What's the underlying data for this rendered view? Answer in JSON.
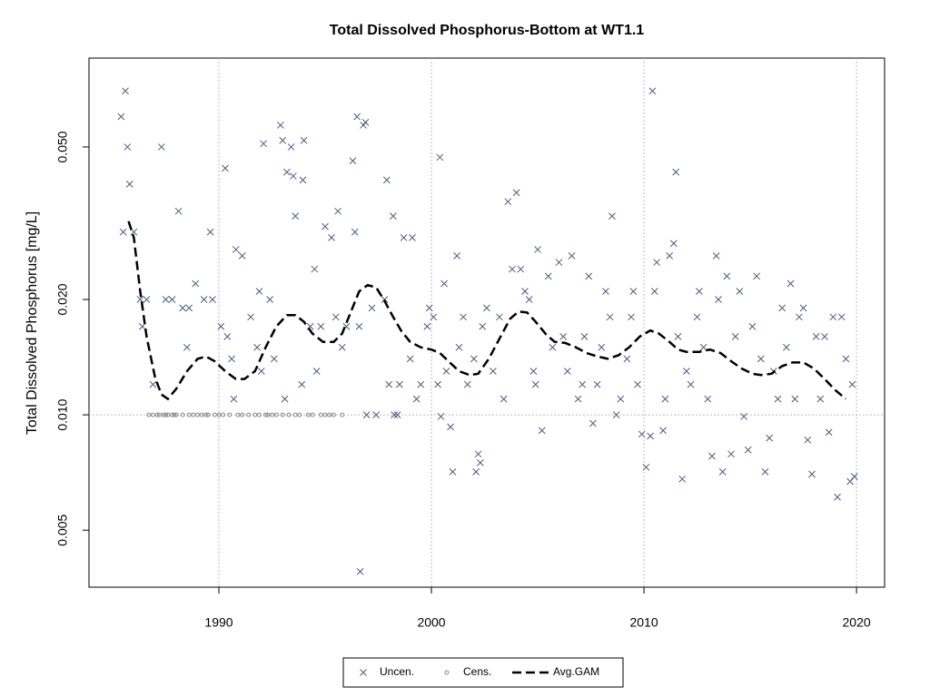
{
  "chart_data": {
    "type": "scatter",
    "title": "Total Dissolved Phosphorus-Bottom at WT1.1",
    "y_label": "Total Dissolved Phosphorus [mg/L]",
    "xlim": [
      1983.89,
      2021.32
    ],
    "xticks": [
      1990,
      2000,
      2010,
      2020
    ],
    "ylim": [
      0.00355,
      0.0853
    ],
    "log_y": true,
    "yticks": [
      0.005,
      {
        "value": 0.01,
        "label": "0.010"
      },
      {
        "value": 0.02,
        "label": "0.020"
      },
      {
        "value": 0.05,
        "label": "0.050"
      }
    ],
    "grid": true,
    "ygrid": [
      0.01
    ],
    "legend": "bottom",
    "series": [
      {
        "name": "Uncen.",
        "color": "#4d5b7c",
        "marker": "cross",
        "x": [
          1985.4,
          1985.6,
          1985.7,
          1985.8,
          1985.5,
          1986.0,
          1986.3,
          1986.6,
          1986.4,
          1986.9,
          1987.3,
          1987.5,
          1987.8,
          1988.1,
          1988.3,
          1988.5,
          1988.6,
          1988.9,
          1989.3,
          1989.6,
          1989.7,
          1990.1,
          1990.3,
          1990.4,
          1990.6,
          1990.7,
          1990.8,
          1991.1,
          1991.5,
          1991.8,
          1991.9,
          1992.0,
          1992.1,
          1992.4,
          1992.6,
          1992.9,
          1993.0,
          1993.1,
          1993.2,
          1993.4,
          1993.5,
          1993.6,
          1993.9,
          1993.95,
          1994.0,
          1994.3,
          1994.5,
          1994.6,
          1994.8,
          1995.0,
          1995.3,
          1995.5,
          1995.6,
          1995.8,
          1996.0,
          1996.3,
          1996.4,
          1996.5,
          1996.6,
          1996.65,
          1996.8,
          1996.9,
          1996.95,
          1997.2,
          1997.4,
          1997.8,
          1997.9,
          1998.0,
          1998.2,
          1998.25,
          1998.4,
          1998.5,
          1998.7,
          1999.0,
          1999.1,
          1999.3,
          1999.5,
          1999.8,
          1999.9,
          2000.1,
          2000.3,
          2000.4,
          2000.45,
          2000.6,
          2000.7,
          2000.9,
          2001.0,
          2001.2,
          2001.3,
          2001.5,
          2001.7,
          2002.0,
          2002.1,
          2002.2,
          2002.3,
          2002.4,
          2002.6,
          2002.9,
          2003.2,
          2003.4,
          2003.6,
          2003.8,
          2004.0,
          2004.2,
          2004.4,
          2004.6,
          2004.8,
          2004.9,
          2005.0,
          2005.2,
          2005.5,
          2005.7,
          2006.0,
          2006.2,
          2006.4,
          2006.6,
          2006.9,
          2007.1,
          2007.2,
          2007.4,
          2007.6,
          2007.8,
          2008.0,
          2008.2,
          2008.4,
          2008.5,
          2008.7,
          2008.9,
          2009.2,
          2009.4,
          2009.5,
          2009.7,
          2009.9,
          2010.1,
          2010.3,
          2010.4,
          2010.5,
          2010.6,
          2010.9,
          2011.0,
          2011.2,
          2011.4,
          2011.5,
          2011.6,
          2011.8,
          2012.0,
          2012.2,
          2012.5,
          2012.6,
          2012.8,
          2013.0,
          2013.2,
          2013.4,
          2013.5,
          2013.7,
          2013.9,
          2014.1,
          2014.3,
          2014.5,
          2014.7,
          2014.9,
          2015.1,
          2015.3,
          2015.5,
          2015.7,
          2015.9,
          2016.1,
          2016.3,
          2016.5,
          2016.7,
          2016.9,
          2017.1,
          2017.3,
          2017.5,
          2017.7,
          2017.9,
          2018.1,
          2018.3,
          2018.5,
          2018.7,
          2018.9,
          2019.1,
          2019.3,
          2019.5,
          2019.7,
          2019.8,
          2019.9
        ],
        "values": [
          0.06,
          0.07,
          0.05,
          0.04,
          0.03,
          0.03,
          0.02,
          0.02,
          0.017,
          0.012,
          0.05,
          0.02,
          0.02,
          0.034,
          0.019,
          0.015,
          0.019,
          0.022,
          0.02,
          0.03,
          0.02,
          0.017,
          0.044,
          0.016,
          0.014,
          0.011,
          0.027,
          0.026,
          0.018,
          0.015,
          0.021,
          0.013,
          0.051,
          0.02,
          0.014,
          0.057,
          0.052,
          0.011,
          0.043,
          0.05,
          0.042,
          0.033,
          0.012,
          0.041,
          0.052,
          0.017,
          0.024,
          0.013,
          0.017,
          0.031,
          0.029,
          0.018,
          0.034,
          0.015,
          0.017,
          0.046,
          0.03,
          0.06,
          0.017,
          0.0039,
          0.057,
          0.058,
          0.01,
          0.019,
          0.01,
          0.02,
          0.041,
          0.012,
          0.033,
          0.01,
          0.01,
          0.012,
          0.029,
          0.014,
          0.029,
          0.011,
          0.012,
          0.017,
          0.019,
          0.018,
          0.012,
          0.047,
          0.0099,
          0.022,
          0.013,
          0.0093,
          0.0071,
          0.026,
          0.015,
          0.018,
          0.012,
          0.014,
          0.0071,
          0.0079,
          0.0075,
          0.017,
          0.019,
          0.013,
          0.018,
          0.011,
          0.036,
          0.024,
          0.038,
          0.024,
          0.021,
          0.02,
          0.013,
          0.012,
          0.027,
          0.0091,
          0.023,
          0.015,
          0.025,
          0.016,
          0.013,
          0.026,
          0.011,
          0.012,
          0.016,
          0.023,
          0.0095,
          0.012,
          0.015,
          0.021,
          0.018,
          0.033,
          0.01,
          0.011,
          0.014,
          0.018,
          0.021,
          0.012,
          0.0089,
          0.0073,
          0.0088,
          0.07,
          0.021,
          0.025,
          0.0091,
          0.011,
          0.026,
          0.028,
          0.043,
          0.016,
          0.0068,
          0.013,
          0.012,
          0.018,
          0.021,
          0.015,
          0.011,
          0.0078,
          0.026,
          0.02,
          0.0071,
          0.023,
          0.0079,
          0.016,
          0.021,
          0.0099,
          0.0081,
          0.017,
          0.023,
          0.014,
          0.0071,
          0.0087,
          0.013,
          0.011,
          0.019,
          0.015,
          0.022,
          0.011,
          0.018,
          0.019,
          0.0086,
          0.007,
          0.016,
          0.011,
          0.016,
          0.009,
          0.018,
          0.0061,
          0.018,
          0.014,
          0.0067,
          0.012,
          0.0069
        ]
      },
      {
        "name": "Cens.",
        "color": "#8a8a8a",
        "marker": "circle",
        "x": [
          1986.7,
          1986.9,
          1987.1,
          1987.2,
          1987.4,
          1987.5,
          1987.6,
          1987.8,
          1987.9,
          1988.0,
          1988.3,
          1988.6,
          1988.8,
          1989.0,
          1989.2,
          1989.4,
          1989.5,
          1989.8,
          1990.0,
          1990.2,
          1990.5,
          1990.9,
          1991.1,
          1991.4,
          1991.7,
          1991.9,
          1992.2,
          1992.3,
          1992.5,
          1992.7,
          1993.0,
          1993.3,
          1993.6,
          1993.8,
          1994.2,
          1994.4,
          1994.8,
          1995.0,
          1995.2,
          1995.4,
          1995.8
        ],
        "values": [
          0.01,
          0.01,
          0.01,
          0.01,
          0.01,
          0.01,
          0.01,
          0.01,
          0.01,
          0.01,
          0.01,
          0.01,
          0.01,
          0.01,
          0.01,
          0.01,
          0.01,
          0.01,
          0.01,
          0.01,
          0.01,
          0.01,
          0.01,
          0.01,
          0.01,
          0.01,
          0.01,
          0.01,
          0.01,
          0.01,
          0.01,
          0.01,
          0.01,
          0.01,
          0.01,
          0.01,
          0.01,
          0.01,
          0.01,
          0.01,
          0.01
        ]
      },
      {
        "name": "Avg.GAM",
        "color": "#000000",
        "marker": "dashed-line",
        "x": [
          1985.75,
          1986.0,
          1986.3,
          1986.6,
          1987.0,
          1987.3,
          1987.6,
          1988.0,
          1988.5,
          1989.0,
          1989.4,
          1989.8,
          1990.3,
          1990.8,
          1991.2,
          1991.7,
          1992.2,
          1992.7,
          1993.2,
          1993.6,
          1994.0,
          1994.4,
          1994.9,
          1995.4,
          1995.8,
          1996.2,
          1996.6,
          1997.0,
          1997.4,
          1997.8,
          1998.2,
          1998.6,
          1999.0,
          1999.5,
          2000.0,
          2000.4,
          2000.8,
          2001.3,
          2001.8,
          2002.2,
          2002.7,
          2003.2,
          2003.7,
          2004.1,
          2004.5,
          2004.9,
          2005.4,
          2005.8,
          2006.3,
          2006.8,
          2007.3,
          2007.8,
          2008.3,
          2008.8,
          2009.3,
          2009.8,
          2010.3,
          2010.7,
          2011.2,
          2011.6,
          2012.0,
          2012.6,
          2013.1,
          2013.6,
          2014.1,
          2014.6,
          2015.1,
          2015.5,
          2016.0,
          2016.5,
          2017.0,
          2017.5,
          2018.0,
          2018.5,
          2019.0,
          2019.5
        ],
        "values": [
          0.032,
          0.029,
          0.021,
          0.016,
          0.0125,
          0.0113,
          0.011,
          0.0117,
          0.013,
          0.014,
          0.0142,
          0.0138,
          0.013,
          0.0124,
          0.0124,
          0.013,
          0.015,
          0.017,
          0.0182,
          0.0182,
          0.0175,
          0.0163,
          0.0155,
          0.0155,
          0.0163,
          0.0185,
          0.021,
          0.0218,
          0.0215,
          0.0198,
          0.018,
          0.0165,
          0.0155,
          0.015,
          0.0148,
          0.0145,
          0.0138,
          0.013,
          0.0127,
          0.0128,
          0.014,
          0.0158,
          0.0178,
          0.0186,
          0.0185,
          0.0175,
          0.0162,
          0.0155,
          0.0154,
          0.015,
          0.0145,
          0.0142,
          0.014,
          0.0143,
          0.015,
          0.016,
          0.0166,
          0.0163,
          0.0155,
          0.0148,
          0.0146,
          0.0146,
          0.0148,
          0.0145,
          0.0138,
          0.0132,
          0.0128,
          0.0127,
          0.0128,
          0.0134,
          0.0137,
          0.0137,
          0.0132,
          0.0124,
          0.0116,
          0.011
        ]
      }
    ]
  }
}
